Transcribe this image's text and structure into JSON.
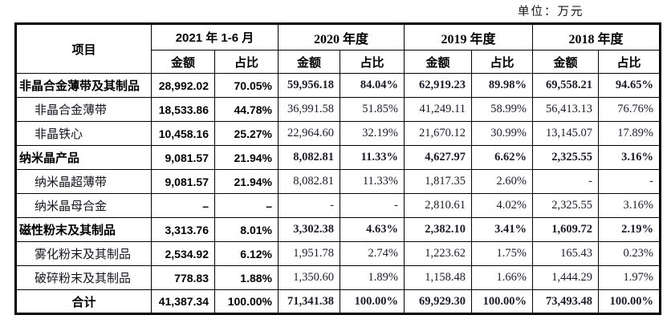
{
  "unit_label": "单位：万元",
  "table": {
    "item_header": "项目",
    "period_headers": [
      "2021 年 1-6 月",
      "2020 年度",
      "2019 年度",
      "2018 年度"
    ],
    "amount_label": "金额",
    "ratio_label": "占比",
    "rows": [
      {
        "label": "非晶合金薄带及其制品",
        "style": "group",
        "cells": [
          "28,992.02",
          "70.05%",
          "59,956.18",
          "84.04%",
          "62,919.23",
          "89.98%",
          "69,558.21",
          "94.65%"
        ]
      },
      {
        "label": "非晶合金薄带",
        "style": "sub",
        "cells": [
          "18,533.86",
          "44.78%",
          "36,991.58",
          "51.85%",
          "41,249.11",
          "58.99%",
          "56,413.13",
          "76.76%"
        ]
      },
      {
        "label": "非晶铁心",
        "style": "sub",
        "cells": [
          "10,458.16",
          "25.27%",
          "22,964.60",
          "32.19%",
          "21,670.12",
          "30.99%",
          "13,145.07",
          "17.89%"
        ]
      },
      {
        "label": "纳米晶产品",
        "style": "group",
        "cells": [
          "9,081.57",
          "21.94%",
          "8,082.81",
          "11.33%",
          "4,627.97",
          "6.62%",
          "2,325.55",
          "3.16%"
        ]
      },
      {
        "label": "纳米晶超薄带",
        "style": "sub",
        "cells": [
          "9,081.57",
          "21.94%",
          "8,082.81",
          "11.33%",
          "1,817.35",
          "2.60%",
          "-",
          "-"
        ]
      },
      {
        "label": "纳米晶母合金",
        "style": "sub",
        "cells": [
          "–",
          "–",
          "-",
          "-",
          "2,810.61",
          "4.02%",
          "2,325.55",
          "3.16%"
        ]
      },
      {
        "label": "磁性粉末及其制品",
        "style": "group",
        "cells": [
          "3,313.76",
          "8.01%",
          "3,302.38",
          "4.63%",
          "2,382.10",
          "3.41%",
          "1,609.72",
          "2.19%"
        ]
      },
      {
        "label": "雾化粉末及其制品",
        "style": "sub",
        "cells": [
          "2,534.92",
          "6.12%",
          "1,951.78",
          "2.74%",
          "1,223.62",
          "1.75%",
          "165.43",
          "0.23%"
        ]
      },
      {
        "label": "破碎粉末及其制品",
        "style": "sub",
        "cells": [
          "778.83",
          "1.88%",
          "1,350.60",
          "1.89%",
          "1,158.48",
          "1.66%",
          "1,444.29",
          "1.97%"
        ]
      },
      {
        "label": "合计",
        "style": "total",
        "cells": [
          "41,387.34",
          "100.00%",
          "71,341.38",
          "100.00%",
          "69,929.30",
          "100.00%",
          "73,493.48",
          "100.00%"
        ]
      }
    ]
  }
}
